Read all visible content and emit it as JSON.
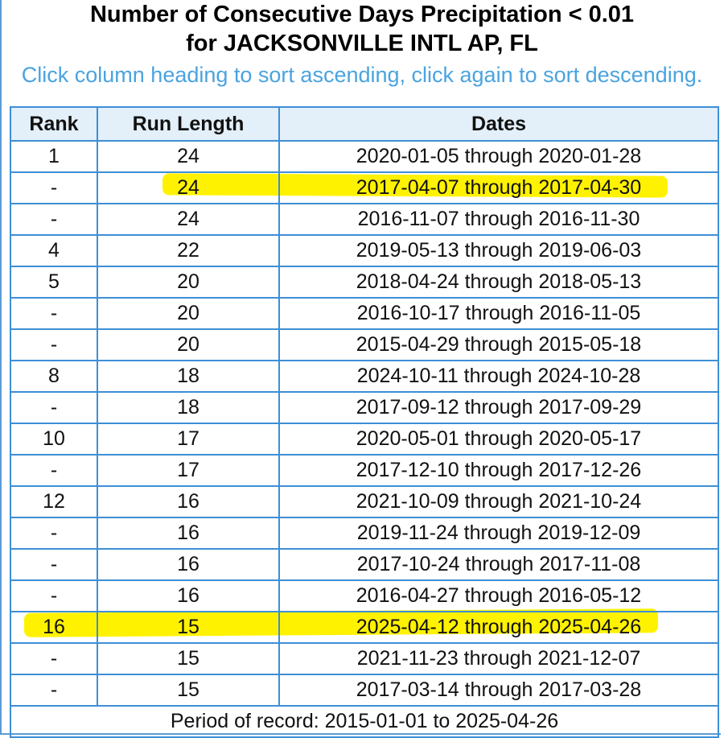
{
  "title_line1": "Number of Consecutive Days Precipitation < 0.01",
  "title_line2": "for JACKSONVILLE INTL AP, FL",
  "instructions": "Click column heading to sort ascending, click again to sort descending.",
  "table": {
    "headers": {
      "rank": "Rank",
      "run_length": "Run Length",
      "dates": "Dates"
    },
    "rows": [
      {
        "rank": "1",
        "run_length": "24",
        "dates": "2020-01-05 through 2020-01-28",
        "highlighted": false
      },
      {
        "rank": "-",
        "run_length": "24",
        "dates": "2017-04-07 through 2017-04-30",
        "highlighted": true
      },
      {
        "rank": "-",
        "run_length": "24",
        "dates": "2016-11-07 through 2016-11-30",
        "highlighted": false
      },
      {
        "rank": "4",
        "run_length": "22",
        "dates": "2019-05-13 through 2019-06-03",
        "highlighted": false
      },
      {
        "rank": "5",
        "run_length": "20",
        "dates": "2018-04-24 through 2018-05-13",
        "highlighted": false
      },
      {
        "rank": "-",
        "run_length": "20",
        "dates": "2016-10-17 through 2016-11-05",
        "highlighted": false
      },
      {
        "rank": "-",
        "run_length": "20",
        "dates": "2015-04-29 through 2015-05-18",
        "highlighted": false
      },
      {
        "rank": "8",
        "run_length": "18",
        "dates": "2024-10-11 through 2024-10-28",
        "highlighted": false
      },
      {
        "rank": "-",
        "run_length": "18",
        "dates": "2017-09-12 through 2017-09-29",
        "highlighted": false
      },
      {
        "rank": "10",
        "run_length": "17",
        "dates": "2020-05-01 through 2020-05-17",
        "highlighted": false
      },
      {
        "rank": "-",
        "run_length": "17",
        "dates": "2017-12-10 through 2017-12-26",
        "highlighted": false
      },
      {
        "rank": "12",
        "run_length": "16",
        "dates": "2021-10-09 through 2021-10-24",
        "highlighted": false
      },
      {
        "rank": "-",
        "run_length": "16",
        "dates": "2019-11-24 through 2019-12-09",
        "highlighted": false
      },
      {
        "rank": "-",
        "run_length": "16",
        "dates": "2017-10-24 through 2017-11-08",
        "highlighted": false
      },
      {
        "rank": "-",
        "run_length": "16",
        "dates": "2016-04-27 through 2016-05-12",
        "highlighted": false
      },
      {
        "rank": "16",
        "run_length": "15",
        "dates": "2025-04-12 through 2025-04-26",
        "highlighted": true
      },
      {
        "rank": "-",
        "run_length": "15",
        "dates": "2021-11-23 through 2021-12-07",
        "highlighted": false
      },
      {
        "rank": "-",
        "run_length": "15",
        "dates": "2017-03-14 through 2017-03-28",
        "highlighted": false
      }
    ],
    "footer": "Period of record: 2015-01-01 to 2025-04-26"
  },
  "colors": {
    "border": "#3d8fd6",
    "header_bg": "#e3eff9",
    "instructions_text": "#4aa3df",
    "highlight": "#fff200"
  }
}
